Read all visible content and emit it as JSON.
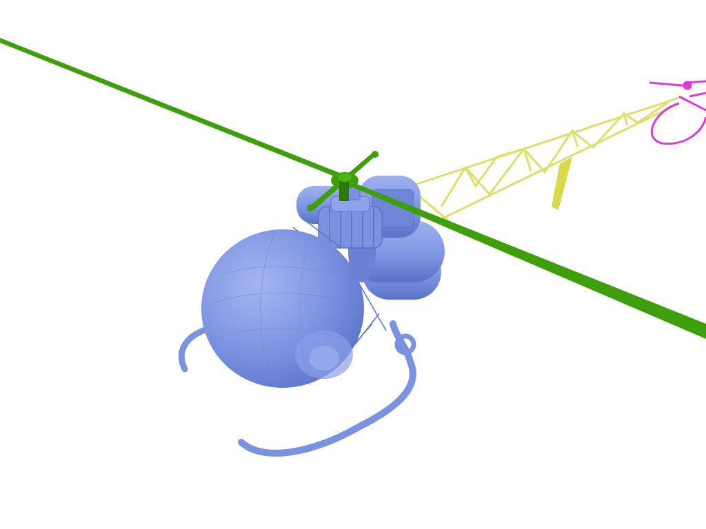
{
  "scene": {
    "subject": "helicopter",
    "colors": {
      "background": "#ffffff",
      "body": "#7b92e0",
      "body_dark": "#5a72c8",
      "body_light": "#a4b6f0",
      "rotor": "#3f9e0b",
      "rotor_dark": "#2e7a06",
      "tail_boom": "#dede6a",
      "tail_fin": "#d9d94a",
      "tail_rotor": "#d93bd9"
    }
  }
}
